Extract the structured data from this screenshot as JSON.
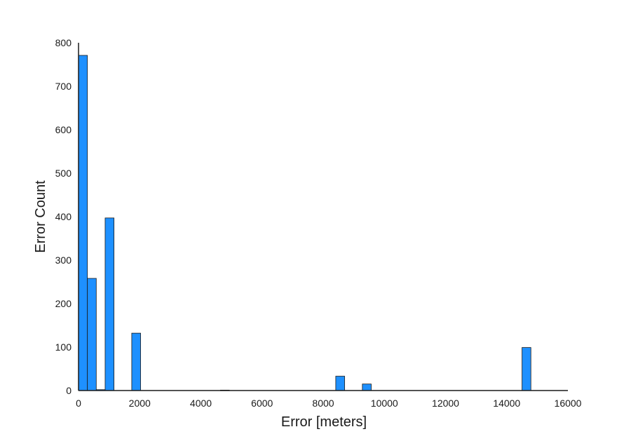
{
  "chart_data": {
    "type": "bar",
    "title": "",
    "xlabel": "Error [meters]",
    "ylabel": "Error Count",
    "xlim": [
      0,
      16000
    ],
    "ylim": [
      0,
      800
    ],
    "xticks": [
      0,
      2000,
      4000,
      6000,
      8000,
      10000,
      12000,
      14000,
      16000
    ],
    "yticks": [
      0,
      100,
      200,
      300,
      400,
      500,
      600,
      700,
      800
    ],
    "grid": false,
    "bar_color": "#1e90ff",
    "bar_edge_color": "#1a1a1a",
    "bins": [
      {
        "x0": 0,
        "x1": 290,
        "count": 771
      },
      {
        "x0": 290,
        "x1": 580,
        "count": 258
      },
      {
        "x0": 580,
        "x1": 870,
        "count": 2
      },
      {
        "x0": 870,
        "x1": 1160,
        "count": 397
      },
      {
        "x0": 1740,
        "x1": 2030,
        "count": 132
      },
      {
        "x0": 4640,
        "x1": 4930,
        "count": 1
      },
      {
        "x0": 8410,
        "x1": 8700,
        "count": 33
      },
      {
        "x0": 9280,
        "x1": 9570,
        "count": 15
      },
      {
        "x0": 14500,
        "x1": 14790,
        "count": 99
      }
    ]
  }
}
